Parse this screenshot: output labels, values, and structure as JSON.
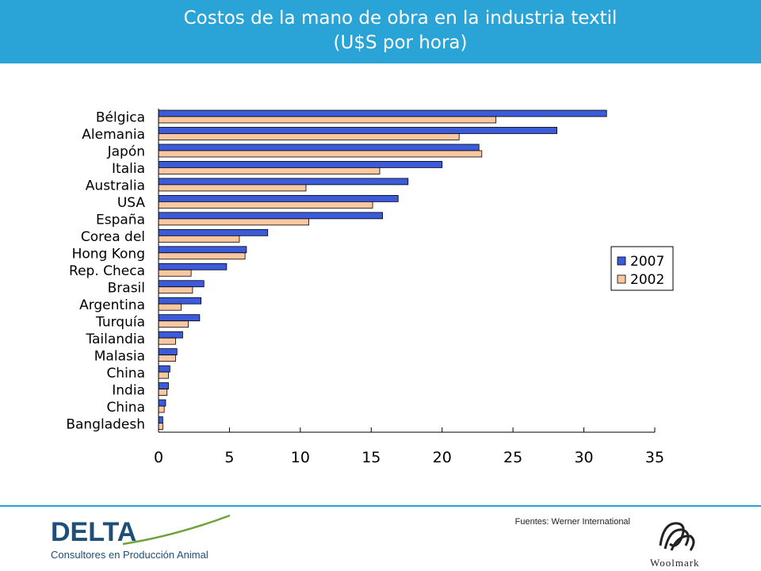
{
  "header": {
    "title_line1": "Costos de la mano de obra en la industria textil",
    "title_line2": "(U$S por hora)"
  },
  "colors": {
    "header_bg": "#2aa3d6",
    "series_2007": "#3b5bdb",
    "series_2002": "#f9c8a0"
  },
  "chart_data": {
    "type": "bar",
    "orientation": "horizontal",
    "title": "",
    "xlabel": "",
    "ylabel": "",
    "xlim": [
      0,
      35
    ],
    "x_ticks": [
      0,
      5,
      10,
      15,
      20,
      25,
      30,
      35
    ],
    "legend_position": "right",
    "categories": [
      "Bélgica",
      "Alemania",
      "Japón",
      "Italia",
      "Australia",
      "USA",
      "España",
      "Corea del",
      "Hong Kong",
      "Rep. Checa",
      "Brasil",
      "Argentina",
      "Turquía",
      "Tailandia",
      "Malasia",
      "China",
      "India",
      "China",
      "Bangladesh"
    ],
    "series": [
      {
        "name": "2007",
        "color": "#3b5bdb",
        "values": [
          31.6,
          28.1,
          22.6,
          20.0,
          17.6,
          16.9,
          15.8,
          7.7,
          6.2,
          4.8,
          3.2,
          3.0,
          2.9,
          1.7,
          1.3,
          0.8,
          0.7,
          0.5,
          0.3
        ]
      },
      {
        "name": "2002",
        "color": "#f9c8a0",
        "values": [
          23.8,
          21.2,
          22.8,
          15.6,
          10.4,
          15.1,
          10.6,
          5.7,
          6.1,
          2.3,
          2.4,
          1.6,
          2.1,
          1.2,
          1.2,
          0.7,
          0.6,
          0.4,
          0.3
        ]
      }
    ]
  },
  "footer": {
    "source": "Fuentes: Werner International",
    "left_logo_word": "DELTA",
    "left_logo_subtitle": "Consultores en Producción Animal",
    "right_logo_word": "Woolmark"
  }
}
